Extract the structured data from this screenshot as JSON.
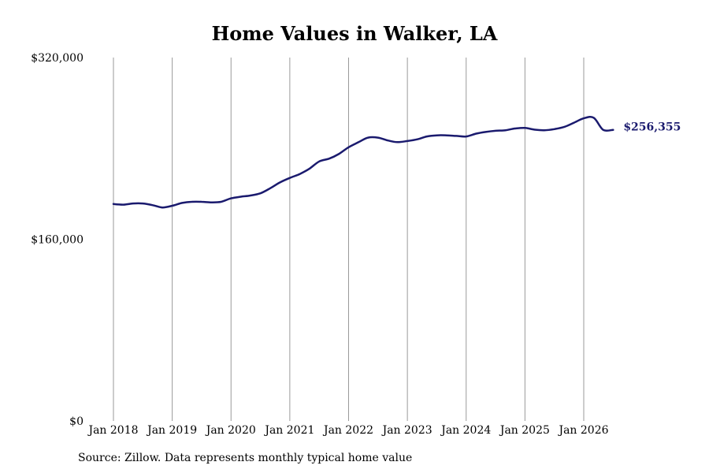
{
  "chart_data": {
    "type": "line",
    "title": "Home Values in Walker, LA",
    "source": "Source: Zillow. Data represents monthly typical home value",
    "xlabel": "",
    "ylabel": "",
    "ylim": [
      0,
      320000
    ],
    "y_ticks": [
      {
        "value": 0,
        "label": "$0"
      },
      {
        "value": 160000,
        "label": "$160,000"
      },
      {
        "value": 320000,
        "label": "$320,000"
      }
    ],
    "x_ticks": [
      {
        "value": 2018.0,
        "label": "Jan 2018"
      },
      {
        "value": 2019.0,
        "label": "Jan 2019"
      },
      {
        "value": 2020.0,
        "label": "Jan 2020"
      },
      {
        "value": 2021.0,
        "label": "Jan 2021"
      },
      {
        "value": 2022.0,
        "label": "Jan 2022"
      },
      {
        "value": 2023.0,
        "label": "Jan 2023"
      },
      {
        "value": 2024.0,
        "label": "Jan 2024"
      },
      {
        "value": 2025.0,
        "label": "Jan 2025"
      },
      {
        "value": 2026.0,
        "label": "Jan 2026"
      }
    ],
    "grid": "vertical",
    "line_color": "#1a1a6e",
    "end_label": "$256,355",
    "series": [
      {
        "x": [
          2018.0,
          2018.17,
          2018.33,
          2018.5,
          2018.67,
          2018.83,
          2019.0,
          2019.17,
          2019.33,
          2019.5,
          2019.67,
          2019.83,
          2020.0,
          2020.17,
          2020.33,
          2020.5,
          2020.67,
          2020.83,
          2021.0,
          2021.17,
          2021.33,
          2021.5,
          2021.67,
          2021.83,
          2022.0,
          2022.17,
          2022.33,
          2022.5,
          2022.67,
          2022.83,
          2023.0,
          2023.17,
          2023.33,
          2023.5,
          2023.67,
          2023.83,
          2024.0,
          2024.17,
          2024.33,
          2024.5,
          2024.67,
          2024.83,
          2025.0,
          2025.17,
          2025.33,
          2025.5,
          2025.67,
          2025.83,
          2026.0,
          2026.17,
          2026.33,
          2026.5
        ],
        "values": [
          191000,
          190500,
          191500,
          191500,
          190000,
          188000,
          189500,
          192000,
          193000,
          193000,
          192500,
          193000,
          196000,
          197500,
          198500,
          200500,
          205000,
          210000,
          214000,
          217500,
          222000,
          228500,
          231000,
          235000,
          241000,
          245500,
          249500,
          249500,
          247000,
          245500,
          246500,
          248000,
          250500,
          251500,
          251500,
          251000,
          250500,
          253000,
          254500,
          255500,
          256000,
          257500,
          258000,
          256500,
          256000,
          257000,
          259000,
          262500,
          266500,
          267000,
          256355,
          256355
        ]
      }
    ]
  }
}
